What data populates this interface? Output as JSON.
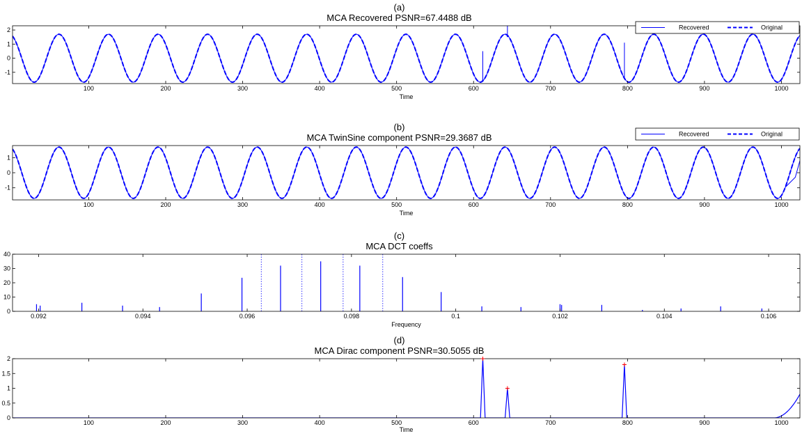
{
  "colors": {
    "signal": "#0000ff",
    "marker": "#ff0000",
    "axis": "#000000"
  },
  "chart_data": [
    {
      "type": "line",
      "panel_label": "(a)",
      "title": "MCA Recovered PSNR=67.4488 dB",
      "xlabel": "Time",
      "ylabel": "",
      "xlim": [
        1,
        1024
      ],
      "ylim": [
        -1.8,
        2.3
      ],
      "xticks": [
        100,
        200,
        300,
        400,
        500,
        600,
        700,
        800,
        900,
        1000
      ],
      "yticks": [
        -1,
        0,
        1,
        2
      ],
      "signal_model": {
        "kind": "sine",
        "amplitude": 1.7,
        "period": 64.4,
        "phase_deg": 23,
        "fade_points": []
      },
      "spikes": [
        {
          "t": 612,
          "low": -1.5,
          "high": 0.5
        },
        {
          "t": 644,
          "low": 1.5,
          "high": 2.4
        },
        {
          "t": 796,
          "low": -1.4,
          "high": 1.1
        }
      ],
      "series": [
        {
          "name": "Recovered",
          "style": "solid"
        },
        {
          "name": "Original",
          "style": "dashed"
        }
      ],
      "legend": "top-right"
    },
    {
      "type": "line",
      "panel_label": "(b)",
      "title": "MCA TwinSine component PSNR=29.3687 dB",
      "xlabel": "Time",
      "ylabel": "",
      "xlim": [
        1,
        1024
      ],
      "ylim": [
        -1.8,
        1.8
      ],
      "xticks": [
        100,
        200,
        300,
        400,
        500,
        600,
        700,
        800,
        900,
        1000
      ],
      "yticks": [
        -1,
        0,
        1
      ],
      "signal_model": {
        "kind": "sine",
        "amplitude": 1.7,
        "period": 64.4,
        "phase_deg": 23
      },
      "series": [
        {
          "name": "Recovered",
          "style": "solid"
        },
        {
          "name": "Original",
          "style": "dashed"
        }
      ],
      "legend": "top-right"
    },
    {
      "type": "stem",
      "panel_label": "(c)",
      "title": "MCA DCT coeffs",
      "xlabel": "Frequency",
      "ylabel": "",
      "xlim": [
        0.0915,
        0.1066
      ],
      "ylim": [
        0,
        40
      ],
      "xticks": [
        0.092,
        0.094,
        0.096,
        0.098,
        0.1,
        0.102,
        0.104,
        0.106
      ],
      "xtick_labels": [
        "0.092",
        "0.094",
        "0.096",
        "0.098",
        "0.1",
        "0.102",
        "0.104",
        "0.106"
      ],
      "yticks": [
        0,
        10,
        20,
        30,
        40
      ],
      "stems": [
        {
          "x": 0.09196,
          "y": 5
        },
        {
          "x": 0.09203,
          "y": 4
        },
        {
          "x": 0.09283,
          "y": 6
        },
        {
          "x": 0.09361,
          "y": 4
        },
        {
          "x": 0.09432,
          "y": 3
        },
        {
          "x": 0.09512,
          "y": 12.5
        },
        {
          "x": 0.0959,
          "y": 23.5
        },
        {
          "x": 0.09664,
          "y": 32
        },
        {
          "x": 0.09741,
          "y": 35
        },
        {
          "x": 0.09816,
          "y": 32
        },
        {
          "x": 0.09898,
          "y": 24
        },
        {
          "x": 0.09972,
          "y": 13.5
        },
        {
          "x": 0.1005,
          "y": 3.5
        },
        {
          "x": 0.10125,
          "y": 3
        },
        {
          "x": 0.102,
          "y": 5
        },
        {
          "x": 0.10203,
          "y": 4.5
        },
        {
          "x": 0.1028,
          "y": 4.5
        },
        {
          "x": 0.10358,
          "y": 1
        },
        {
          "x": 0.10432,
          "y": 2
        },
        {
          "x": 0.10508,
          "y": 3.5
        },
        {
          "x": 0.10587,
          "y": 2
        }
      ],
      "reference_lines": [
        0.09627,
        0.09705,
        0.09784,
        0.0986
      ]
    },
    {
      "type": "line",
      "panel_label": "(d)",
      "title": "MCA Dirac component PSNR=30.5055 dB",
      "xlabel": "Time",
      "ylabel": "",
      "xlim": [
        1,
        1024
      ],
      "ylim": [
        0,
        2
      ],
      "xticks": [
        100,
        200,
        300,
        400,
        500,
        600,
        700,
        800,
        900,
        1000
      ],
      "yticks": [
        0,
        0.5,
        1,
        1.5,
        2
      ],
      "spikes": [
        {
          "t": 612,
          "value": 2.0
        },
        {
          "t": 644,
          "value": 1.0
        },
        {
          "t": 796,
          "value": 1.8
        }
      ],
      "markers": [
        {
          "t": 612,
          "value": 2.0
        },
        {
          "t": 644,
          "value": 1.0
        },
        {
          "t": 796,
          "value": 1.8
        }
      ],
      "tail": {
        "start": 990,
        "end": 1024,
        "end_value": 0.8
      }
    }
  ]
}
